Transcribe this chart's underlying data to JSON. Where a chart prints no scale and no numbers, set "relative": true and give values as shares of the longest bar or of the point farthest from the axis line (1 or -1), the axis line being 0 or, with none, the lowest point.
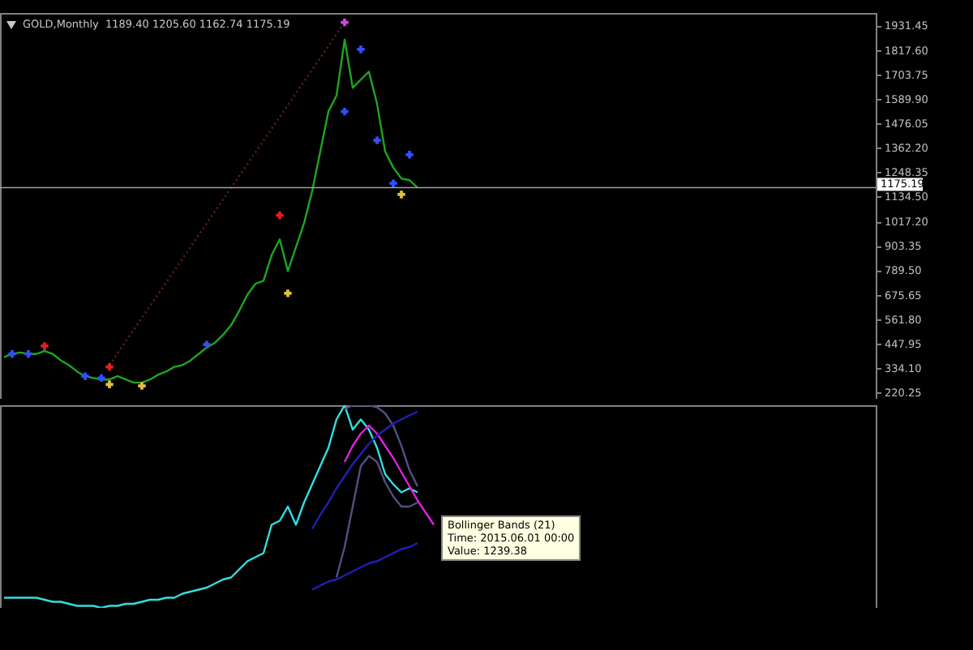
{
  "chart_data": [
    {
      "type": "line",
      "title": "GOLD,Monthly  1189.40 1205.60 1162.74 1175.19",
      "categories": [
        null,
        null,
        null,
        null,
        null,
        null,
        null,
        null,
        null,
        null,
        null,
        null,
        null,
        null,
        null,
        null,
        null,
        null,
        null,
        null,
        null,
        null,
        null,
        null,
        null,
        null,
        null,
        null,
        null,
        null,
        null,
        null,
        null,
        null,
        null,
        null,
        null,
        null,
        null,
        null,
        null,
        null,
        null,
        null,
        null,
        null,
        null,
        null,
        null,
        null,
        null,
        null,
        null,
        null,
        null,
        null,
        null,
        null,
        null,
        null,
        null,
        null,
        null,
        null,
        null,
        null,
        null,
        null,
        null,
        null,
        null,
        null,
        null,
        null,
        null,
        null,
        null,
        null,
        null,
        null,
        null,
        null,
        null,
        null,
        null,
        null,
        null,
        null,
        null,
        null,
        null,
        null,
        null,
        null,
        null,
        null,
        null,
        null,
        null,
        null,
        null,
        null,
        null,
        null,
        null,
        null,
        null,
        null
      ],
      "series": [
        {
          "type": "line",
          "color": "#1fa51f",
          "values": [
            384,
            399,
            406,
            399,
            399,
            413,
            399,
            369,
            347,
            317,
            295,
            287,
            280,
            280,
            295,
            280,
            265,
            265,
            280,
            302,
            317,
            339,
            347,
            369,
            399,
            429,
            451,
            488,
            533,
            600,
            675,
            726,
            741,
            860,
            934,
            786,
            897,
            1009,
            1158,
            1344,
            1530,
            1604,
            1865,
            1641,
            1679,
            1716,
            1567,
            1344,
            1269,
            1217,
            1210,
            1175,
            null,
            null,
            null,
            null,
            null,
            null,
            null,
            null,
            null,
            null,
            null,
            null,
            null,
            null,
            null,
            null,
            null,
            null,
            null,
            null,
            null,
            null,
            null,
            null,
            null,
            null,
            null,
            null,
            null,
            null,
            null,
            null,
            null,
            null,
            null,
            null,
            null,
            null,
            null,
            null,
            null,
            null,
            null,
            null,
            null,
            null,
            null,
            null,
            null,
            null,
            null,
            null,
            null,
            null,
            null,
            null
          ]
        },
        {
          "type": "line",
          "color": "#602028",
          "line_style": "dotted",
          "values": [
            null,
            null,
            null,
            null,
            null,
            null,
            null,
            null,
            null,
            null,
            null,
            null,
            null,
            347,
            null,
            null,
            null,
            null,
            null,
            null,
            null,
            null,
            null,
            null,
            null,
            null,
            null,
            null,
            null,
            null,
            null,
            null,
            null,
            null,
            null,
            null,
            null,
            null,
            null,
            null,
            null,
            null,
            1946,
            null,
            null,
            null,
            null,
            null,
            null,
            null,
            null,
            null,
            null,
            null,
            null,
            null,
            null,
            null,
            null,
            null,
            null,
            null,
            null,
            null,
            null,
            null,
            null,
            null,
            null,
            null,
            null,
            null,
            null,
            null,
            null,
            null,
            null,
            null,
            null,
            null,
            null,
            null,
            null,
            null,
            null,
            null,
            null,
            null,
            null,
            null,
            null,
            null,
            null,
            null,
            null,
            null,
            null,
            null,
            null,
            null,
            null,
            null,
            null,
            null,
            null,
            null,
            null,
            null
          ]
        },
        {
          "type": "scatter",
          "color": "#e02020",
          "marker": "cross",
          "values": [
            null,
            null,
            null,
            null,
            null,
            436,
            null,
            null,
            null,
            null,
            null,
            null,
            null,
            339,
            null,
            null,
            null,
            null,
            null,
            null,
            null,
            null,
            null,
            null,
            null,
            null,
            null,
            null,
            null,
            null,
            null,
            null,
            null,
            null,
            1046,
            null,
            null,
            null,
            null,
            null,
            null,
            null,
            null,
            null,
            null,
            null,
            null,
            null,
            null,
            null,
            null,
            null,
            null,
            null,
            null,
            null,
            null,
            null,
            null,
            null,
            null,
            null,
            null,
            null,
            null,
            null,
            null,
            null,
            null,
            null,
            null,
            null,
            null,
            null,
            null,
            null,
            null,
            null,
            null,
            null,
            null,
            null,
            null,
            null,
            null,
            null,
            null,
            null,
            null,
            null,
            null,
            null,
            null,
            null,
            null,
            null,
            null,
            null,
            null,
            null,
            null,
            null,
            null,
            null,
            null,
            null,
            null,
            null
          ]
        },
        {
          "type": "scatter",
          "color": "#e0c040",
          "marker": "cross",
          "values": [
            null,
            null,
            null,
            null,
            null,
            null,
            null,
            null,
            null,
            null,
            null,
            null,
            null,
            257,
            null,
            null,
            null,
            250,
            null,
            null,
            null,
            null,
            null,
            null,
            null,
            null,
            null,
            null,
            null,
            null,
            null,
            null,
            null,
            null,
            null,
            682,
            null,
            null,
            null,
            null,
            null,
            null,
            null,
            null,
            null,
            null,
            null,
            null,
            null,
            1143,
            null,
            null,
            null,
            null,
            null,
            null,
            null,
            null,
            null,
            null,
            null,
            null,
            null,
            null,
            null,
            null,
            null,
            null,
            null,
            null,
            null,
            null,
            null,
            null,
            null,
            null,
            null,
            null,
            null,
            null,
            null,
            null,
            null,
            null,
            null,
            null,
            null,
            null,
            null,
            null,
            null,
            null,
            null,
            null,
            null,
            null,
            null,
            null,
            null,
            null,
            null,
            null,
            null,
            null,
            null,
            null,
            null,
            null
          ]
        },
        {
          "type": "scatter",
          "color": "#e040e0",
          "marker": "cross",
          "values": [
            null,
            null,
            null,
            null,
            null,
            null,
            null,
            null,
            null,
            null,
            null,
            null,
            null,
            null,
            null,
            null,
            null,
            null,
            null,
            null,
            null,
            null,
            null,
            null,
            null,
            null,
            null,
            null,
            null,
            null,
            null,
            null,
            null,
            null,
            null,
            null,
            null,
            null,
            null,
            null,
            null,
            null,
            1946,
            null,
            null,
            null,
            null,
            null,
            null,
            null,
            null,
            null,
            null,
            null,
            null,
            null,
            null,
            null,
            null,
            null,
            null,
            null,
            null,
            null,
            null,
            null,
            null,
            null,
            null,
            null,
            null,
            null,
            null,
            null,
            null,
            null,
            null,
            null,
            null,
            null,
            null,
            null,
            null,
            null,
            null,
            null,
            null,
            null,
            null,
            null,
            null,
            null,
            null,
            null,
            null,
            null,
            null,
            null,
            null,
            null,
            null,
            null,
            null,
            null,
            null,
            null,
            null,
            null
          ]
        },
        {
          "type": "scatter",
          "color": "#3050ff",
          "marker": "cross",
          "values": [
            null,
            399,
            null,
            399,
            null,
            null,
            null,
            null,
            null,
            null,
            295,
            null,
            287,
            null,
            null,
            null,
            null,
            null,
            null,
            null,
            null,
            null,
            null,
            null,
            null,
            443,
            null,
            null,
            null,
            null,
            null,
            null,
            null,
            null,
            null,
            null,
            null,
            null,
            null,
            null,
            null,
            null,
            1530,
            null,
            1820,
            null,
            1396,
            null,
            1195,
            null,
            1329,
            null,
            null,
            null,
            null,
            null,
            null,
            null,
            null,
            null,
            null,
            null,
            null,
            null,
            null,
            null,
            null,
            null,
            null,
            null,
            null,
            null,
            null,
            null,
            null,
            null,
            null,
            null,
            null,
            null,
            null,
            null,
            null,
            null,
            null,
            null,
            null,
            null,
            null,
            null,
            null,
            null,
            null,
            null,
            null,
            null,
            null,
            null,
            null,
            null,
            null,
            null,
            null,
            null,
            null,
            null,
            null,
            null
          ]
        }
      ],
      "ylim": [
        190,
        1990
      ],
      "yticks": [
        {
          "value": 220.25,
          "label": "220.25"
        },
        {
          "value": 334.1,
          "label": "334.10"
        },
        {
          "value": 447.95,
          "label": "447.95"
        },
        {
          "value": 561.8,
          "label": "561.80"
        },
        {
          "value": 675.65,
          "label": "675.65"
        },
        {
          "value": 789.5,
          "label": "789.50"
        },
        {
          "value": 903.35,
          "label": "903.35"
        },
        {
          "value": 1017.2,
          "label": "1017.20"
        },
        {
          "value": 1134.5,
          "label": "1134.50"
        },
        {
          "value": 1248.35,
          "label": "1248.35"
        },
        {
          "value": 1362.2,
          "label": "1362.20"
        },
        {
          "value": 1476.05,
          "label": "1476.05"
        },
        {
          "value": 1589.9,
          "label": "1589.90"
        },
        {
          "value": 1703.75,
          "label": "1703.75"
        },
        {
          "value": 1817.6,
          "label": "1817.60"
        },
        {
          "value": 1931.45,
          "label": "1931.45"
        }
      ],
      "ref_lines": [
        {
          "axis": "y",
          "value": 1175.19,
          "label": "1175.19",
          "color": "#a0a0a0"
        }
      ],
      "tick_labels": "y"
    },
    {
      "type": "line",
      "relative": true,
      "categories": [
        null,
        null,
        null,
        null,
        null,
        null,
        null,
        null,
        null,
        null,
        null,
        null,
        null,
        null,
        null,
        null,
        null,
        null,
        null,
        null,
        null,
        null,
        null,
        null,
        null,
        null,
        null,
        null,
        null,
        null,
        null,
        null,
        null,
        null,
        null,
        null,
        null,
        null,
        null,
        null,
        null,
        null,
        null,
        null,
        null,
        null,
        null,
        null,
        null,
        null,
        null,
        null,
        null,
        null,
        null,
        null,
        null,
        null,
        null,
        null,
        null,
        null,
        null,
        null,
        null,
        null,
        null,
        null,
        null,
        null,
        null,
        null,
        null,
        null,
        null,
        null,
        null,
        null,
        null,
        null,
        null,
        null,
        null,
        null,
        null,
        null,
        null,
        null,
        null,
        null,
        null,
        null,
        null,
        null,
        null,
        null,
        null,
        null,
        null,
        null,
        null,
        null,
        null,
        null,
        null,
        null,
        null,
        null
      ],
      "series": [
        {
          "type": "line",
          "color": "#33dede",
          "values": [
            0.05,
            0.05,
            0.05,
            0.05,
            0.05,
            0.04,
            0.03,
            0.03,
            0.02,
            0.01,
            0.01,
            0.01,
            0,
            0.01,
            0.01,
            0.02,
            0.02,
            0.03,
            0.04,
            0.04,
            0.05,
            0.05,
            0.07,
            0.08,
            0.09,
            0.1,
            0.12,
            0.14,
            0.15,
            0.19,
            0.23,
            0.25,
            0.27,
            0.41,
            0.43,
            0.5,
            0.41,
            0.52,
            0.61,
            0.7,
            0.79,
            0.93,
            1,
            0.88,
            0.93,
            0.88,
            0.79,
            0.66,
            0.61,
            0.57,
            0.59,
            0.57,
            null,
            null,
            null,
            null,
            null,
            null,
            null,
            null,
            null,
            null,
            null,
            null,
            null,
            null,
            null,
            null,
            null,
            null,
            null,
            null,
            null,
            null,
            null,
            null,
            null,
            null,
            null,
            null,
            null,
            null,
            null,
            null,
            null,
            null,
            null,
            null,
            null,
            null,
            null,
            null,
            null,
            null,
            null,
            null,
            null,
            null,
            null,
            null,
            null,
            null,
            null,
            null,
            null,
            null,
            null,
            null
          ]
        },
        {
          "type": "line",
          "color": "#505080",
          "values": [
            null,
            null,
            null,
            null,
            null,
            null,
            null,
            null,
            null,
            null,
            null,
            null,
            null,
            null,
            null,
            null,
            null,
            null,
            null,
            null,
            null,
            null,
            null,
            null,
            null,
            null,
            null,
            null,
            null,
            null,
            null,
            null,
            null,
            null,
            null,
            null,
            null,
            null,
            null,
            null,
            null,
            null,
            0.98,
            1,
            1,
            1,
            0.99,
            0.96,
            0.9,
            0.8,
            0.68,
            0.6,
            null,
            null,
            null,
            null,
            null,
            null,
            null,
            null,
            null,
            null,
            null,
            null,
            null,
            null,
            null,
            null,
            null,
            null,
            null,
            null,
            null,
            null,
            null,
            null,
            null,
            null,
            null,
            null,
            null,
            null,
            null,
            null,
            null,
            null,
            null,
            null,
            null,
            null,
            null,
            null,
            null,
            null,
            null,
            null,
            null,
            null,
            null,
            null,
            null,
            null,
            null,
            null,
            null,
            null,
            null,
            null
          ]
        },
        {
          "type": "line",
          "color": "#505080",
          "values": [
            null,
            null,
            null,
            null,
            null,
            null,
            null,
            null,
            null,
            null,
            null,
            null,
            null,
            null,
            null,
            null,
            null,
            null,
            null,
            null,
            null,
            null,
            null,
            null,
            null,
            null,
            null,
            null,
            null,
            null,
            null,
            null,
            null,
            null,
            null,
            null,
            null,
            null,
            null,
            null,
            null,
            0.15,
            0.3,
            0.5,
            0.7,
            0.75,
            0.72,
            0.62,
            0.55,
            0.5,
            0.5,
            0.52,
            null,
            null,
            null,
            null,
            null,
            null,
            null,
            null,
            null,
            null,
            null,
            null,
            null,
            null,
            null,
            null,
            null,
            null,
            null,
            null,
            null,
            null,
            null,
            null,
            null,
            null,
            null,
            null,
            null,
            null,
            null,
            null,
            null,
            null,
            null,
            null,
            null,
            null,
            null,
            null,
            null,
            null,
            null,
            null,
            null,
            null,
            null,
            null,
            null,
            null,
            null,
            null,
            null,
            null,
            null,
            null
          ]
        },
        {
          "type": "line",
          "color": "#e020e0",
          "values": [
            null,
            null,
            null,
            null,
            null,
            null,
            null,
            null,
            null,
            null,
            null,
            null,
            null,
            null,
            null,
            null,
            null,
            null,
            null,
            null,
            null,
            null,
            null,
            null,
            null,
            null,
            null,
            null,
            null,
            null,
            null,
            null,
            null,
            null,
            null,
            null,
            null,
            null,
            null,
            null,
            null,
            null,
            0.72,
            0.8,
            0.86,
            0.9,
            0.86,
            0.8,
            0.74,
            0.67,
            0.6,
            0.53,
            0.47,
            0.41,
            null,
            null,
            null,
            null,
            null,
            null,
            null,
            null,
            null,
            null,
            null,
            null,
            null,
            null,
            null,
            null,
            null,
            null,
            null,
            null,
            null,
            null,
            null,
            null,
            null,
            null,
            null,
            null,
            null,
            null,
            null,
            null,
            null,
            null,
            null,
            null,
            null,
            null,
            null,
            null,
            null,
            null,
            null,
            null,
            null,
            null,
            null,
            null,
            null,
            null,
            null,
            null,
            null,
            null
          ]
        },
        {
          "type": "line",
          "color": "#2020b8",
          "values": [
            null,
            null,
            null,
            null,
            null,
            null,
            null,
            null,
            null,
            null,
            null,
            null,
            null,
            null,
            null,
            null,
            null,
            null,
            null,
            null,
            null,
            null,
            null,
            null,
            null,
            null,
            null,
            null,
            null,
            null,
            null,
            null,
            null,
            null,
            null,
            null,
            null,
            null,
            0.39,
            0.46,
            0.52,
            0.59,
            0.65,
            0.71,
            0.76,
            0.81,
            0.85,
            0.88,
            0.91,
            0.93,
            0.95,
            0.97,
            null,
            null,
            null,
            null,
            null,
            null,
            null,
            null,
            null,
            null,
            null,
            null,
            null,
            null,
            null,
            null,
            null,
            null,
            null,
            null,
            null,
            null,
            null,
            null,
            null,
            null,
            null,
            null,
            null,
            null,
            null,
            null,
            null,
            null,
            null,
            null,
            null,
            null,
            null,
            null,
            null,
            null,
            null,
            null,
            null,
            null,
            null,
            null,
            null,
            null,
            null,
            null,
            null,
            null,
            null,
            null
          ]
        },
        {
          "type": "line",
          "color": "#2020b8",
          "values": [
            null,
            null,
            null,
            null,
            null,
            null,
            null,
            null,
            null,
            null,
            null,
            null,
            null,
            null,
            null,
            null,
            null,
            null,
            null,
            null,
            null,
            null,
            null,
            null,
            null,
            null,
            null,
            null,
            null,
            null,
            null,
            null,
            null,
            null,
            null,
            null,
            null,
            null,
            0.09,
            0.11,
            0.13,
            0.14,
            0.16,
            0.18,
            0.2,
            0.22,
            0.23,
            0.25,
            0.27,
            0.29,
            0.3,
            0.32,
            null,
            null,
            null,
            null,
            null,
            null,
            null,
            null,
            null,
            null,
            null,
            null,
            null,
            null,
            null,
            null,
            null,
            null,
            null,
            null,
            null,
            null,
            null,
            null,
            null,
            null,
            null,
            null,
            null,
            null,
            null,
            null,
            null,
            null,
            null,
            null,
            null,
            null,
            null,
            null,
            null,
            null,
            null,
            null,
            null,
            null,
            null,
            null,
            null,
            null,
            null,
            null,
            null,
            null,
            null,
            null
          ]
        }
      ],
      "annotations": [
        "Bollinger Bands (21)",
        "Time: 2015.06.01 00:00",
        "Value: 1239.38"
      ],
      "tick_labels": false
    }
  ]
}
